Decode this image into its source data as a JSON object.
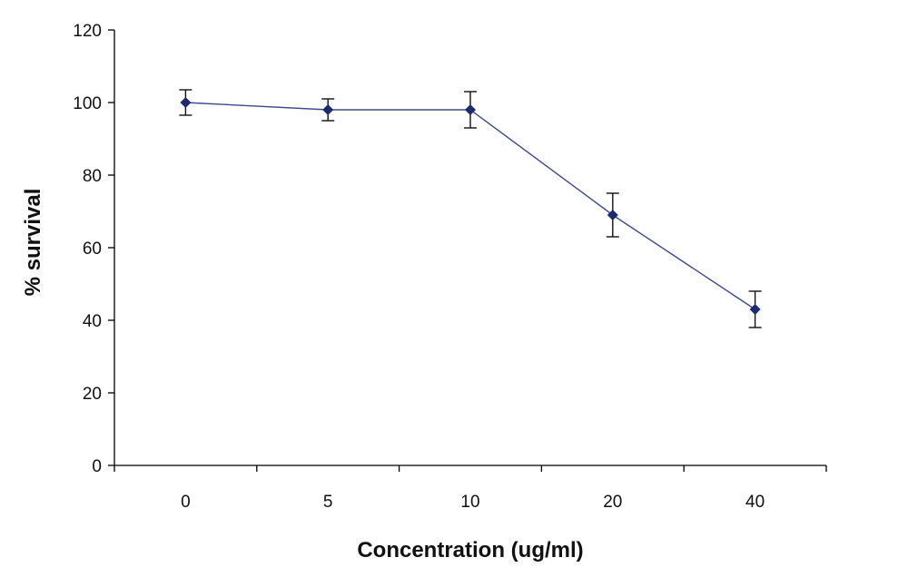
{
  "chart_data": {
    "type": "line",
    "title": "",
    "xlabel": "Concentration (ug/ml)",
    "ylabel": "% survival",
    "categories": [
      "0",
      "5",
      "10",
      "20",
      "40"
    ],
    "series": [
      {
        "values": [
          100,
          98,
          98,
          69,
          43
        ],
        "error": [
          3.5,
          3,
          5,
          6,
          5
        ]
      }
    ],
    "ylim": [
      0,
      120
    ],
    "yticks": [
      0,
      20,
      40,
      60,
      80,
      100,
      120
    ],
    "grid": false,
    "legend": "none",
    "colors": {
      "line": "#3d4b8a",
      "marker": "#1e2a6e",
      "axis": "#000000",
      "errorbar": "#111111"
    }
  }
}
